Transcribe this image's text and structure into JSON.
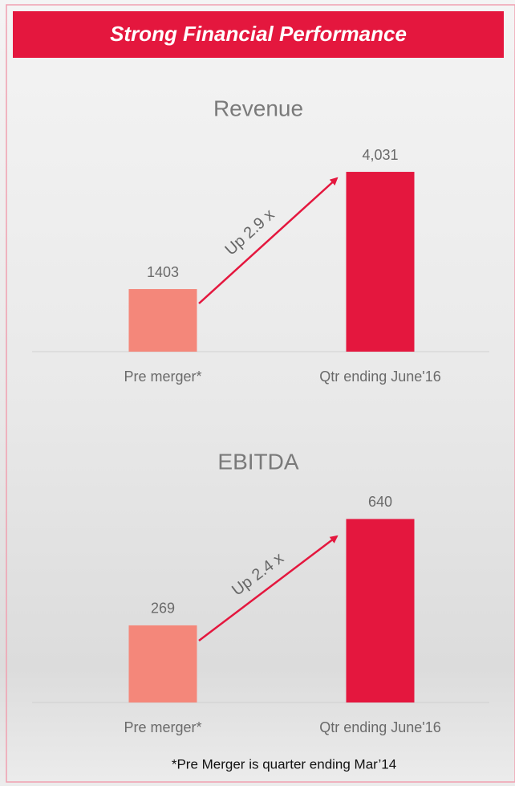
{
  "header": {
    "title": "Strong Financial Performance"
  },
  "chart_data": [
    {
      "type": "bar",
      "title": "Revenue",
      "categories": [
        "Pre merger*",
        "Qtr ending June'16"
      ],
      "values": [
        1403,
        4031
      ],
      "value_labels": [
        "1403",
        "4,031"
      ],
      "colors": [
        "#f4877a",
        "#e4173e"
      ],
      "ylim": [
        0,
        4500
      ],
      "annotation": "Up 2.9 x"
    },
    {
      "type": "bar",
      "title": "EBITDA",
      "categories": [
        "Pre merger*",
        "Qtr ending June'16"
      ],
      "values": [
        269,
        640
      ],
      "value_labels": [
        "269",
        "640"
      ],
      "colors": [
        "#f4877a",
        "#e4173e"
      ],
      "ylim": [
        0,
        700
      ],
      "annotation": "Up 2.4 x"
    }
  ],
  "footnote": "*Pre Merger is quarter ending Mar’14"
}
